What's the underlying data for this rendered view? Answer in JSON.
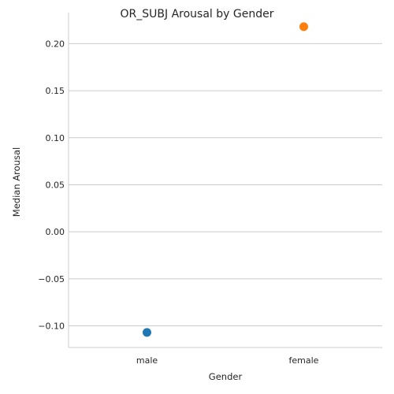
{
  "chart_data": {
    "type": "scatter",
    "title": "OR_SUBJ Arousal by Gender",
    "xlabel": "Gender",
    "ylabel": "Median Arousal",
    "categories": [
      "male",
      "female"
    ],
    "values": [
      -0.107,
      0.218
    ],
    "point_colors": [
      "#1f77b4",
      "#ff7f0e"
    ],
    "ylim": [
      -0.123,
      0.233
    ],
    "yticks": [
      -0.1,
      -0.05,
      0.0,
      0.05,
      0.1,
      0.15,
      0.2
    ],
    "ytick_labels": [
      "−0.10",
      "−0.05",
      "0.00",
      "0.05",
      "0.10",
      "0.15",
      "0.20"
    ],
    "grid": "horizontal",
    "legend": "none"
  }
}
